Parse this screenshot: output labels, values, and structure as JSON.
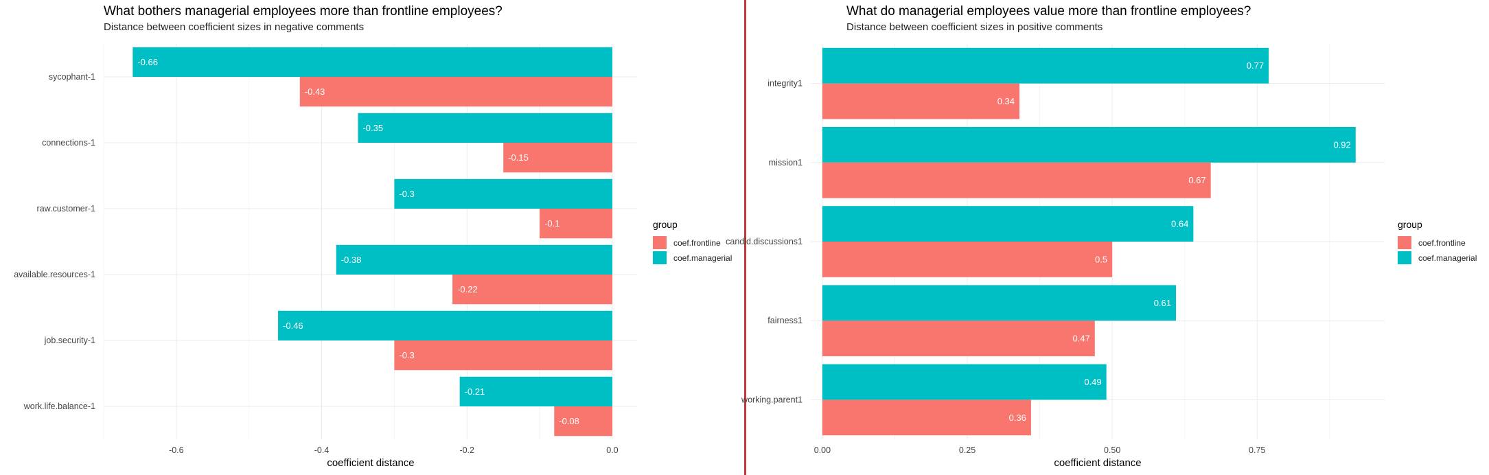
{
  "colors": {
    "coef.frontline": "#F8766D",
    "coef.managerial": "#00BFC4",
    "divider": "#c33a3a"
  },
  "chart_data": [
    {
      "type": "bar",
      "orientation": "horizontal",
      "title": "What bothers managerial employees more than frontline employees?",
      "subtitle": "Distance between coefficient sizes in negative comments",
      "xlabel": "coefficient distance",
      "ylabel": "",
      "xlim": [
        -0.7,
        0.035
      ],
      "xticks": [
        -0.6,
        -0.4,
        -0.2,
        0.0
      ],
      "xtick_labels": [
        "-0.6",
        "-0.4",
        "-0.2",
        "0.0"
      ],
      "grid": true,
      "legend_title": "group",
      "legend_position": "right",
      "categories": [
        "sycophant-1",
        "connections-1",
        "raw.customer-1",
        "available.resources-1",
        "job.security-1",
        "work.life.balance-1"
      ],
      "series": [
        {
          "name": "coef.managerial",
          "values": [
            -0.66,
            -0.35,
            -0.3,
            -0.38,
            -0.46,
            -0.21
          ],
          "labels": [
            "-0.66",
            "-0.35",
            "-0.3",
            "-0.38",
            "-0.46",
            "-0.21"
          ]
        },
        {
          "name": "coef.frontline",
          "values": [
            -0.43,
            -0.15,
            -0.1,
            -0.22,
            -0.3,
            -0.08
          ],
          "labels": [
            "-0.43",
            "-0.15",
            "-0.1",
            "-0.22",
            "-0.3",
            "-0.08"
          ]
        }
      ],
      "legend": [
        "coef.frontline",
        "coef.managerial"
      ]
    },
    {
      "type": "bar",
      "orientation": "horizontal",
      "title": "What do managerial employees value more than frontline employees?",
      "subtitle": "Distance between coefficient sizes in positive comments",
      "xlabel": "coefficient distance",
      "ylabel": "",
      "xlim": [
        -0.02,
        0.97
      ],
      "xticks": [
        0.0,
        0.25,
        0.5,
        0.75
      ],
      "xtick_labels": [
        "0.00",
        "0.25",
        "0.50",
        "0.75"
      ],
      "grid": true,
      "legend_title": "group",
      "legend_position": "right",
      "categories": [
        "integrity1",
        "mission1",
        "candid.discussions1",
        "fairness1",
        "working.parent1"
      ],
      "series": [
        {
          "name": "coef.managerial",
          "values": [
            0.77,
            0.92,
            0.64,
            0.61,
            0.49
          ],
          "labels": [
            "0.77",
            "0.92",
            "0.64",
            "0.61",
            "0.49"
          ]
        },
        {
          "name": "coef.frontline",
          "values": [
            0.34,
            0.67,
            0.5,
            0.47,
            0.36
          ],
          "labels": [
            "0.34",
            "0.67",
            "0.5",
            "0.47",
            "0.36"
          ]
        }
      ],
      "legend": [
        "coef.frontline",
        "coef.managerial"
      ]
    }
  ]
}
